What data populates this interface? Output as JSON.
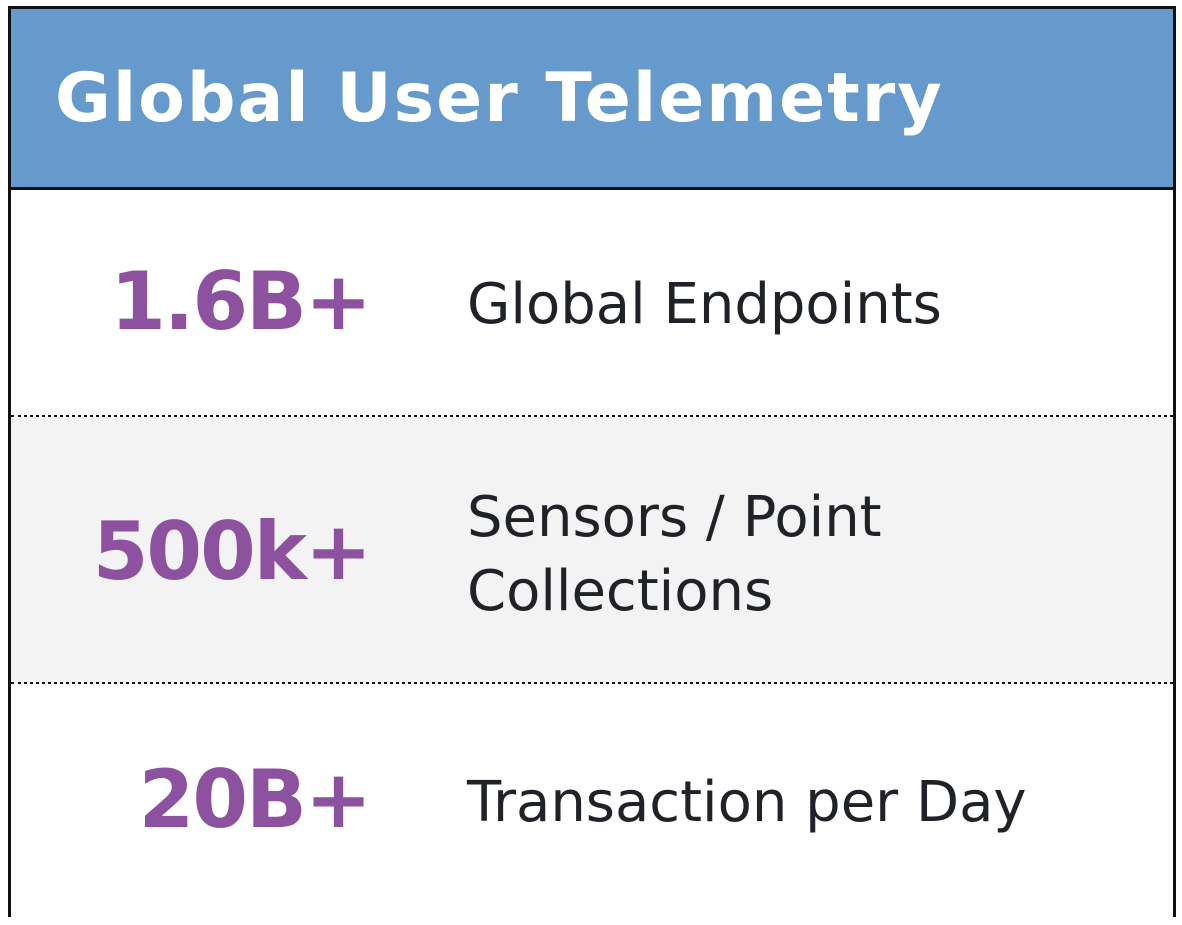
{
  "header": {
    "title": "Global User Telemetry",
    "background_color": "#6699cc"
  },
  "accent_color": "#8c52a0",
  "stats": [
    {
      "value": "1.6B+",
      "label": "Global Endpoints"
    },
    {
      "value": "500k+",
      "label": "Sensors / Point Collections"
    },
    {
      "value": "20B+",
      "label": "Transaction per Day"
    }
  ]
}
